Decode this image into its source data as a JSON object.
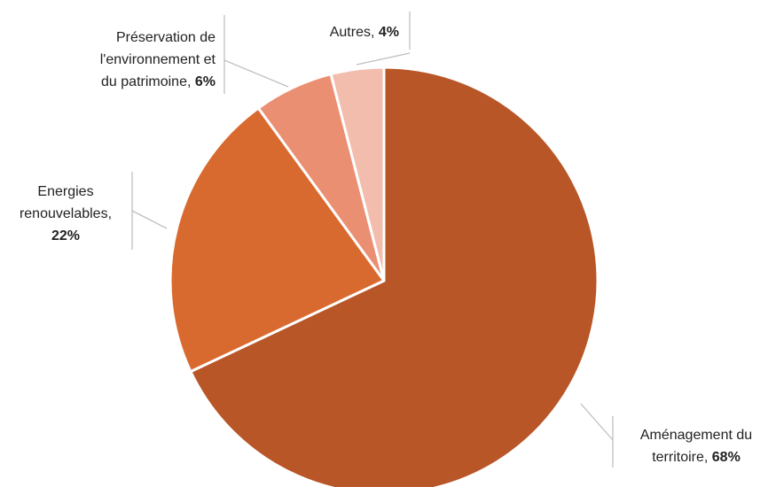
{
  "chart_data": {
    "type": "pie",
    "title": "",
    "legend": "none",
    "slices": [
      {
        "label": "Aménagement du territoire",
        "label_lines": [
          "Aménagement du",
          "territoire,"
        ],
        "value": 68,
        "display": "68%",
        "color": "#B85628"
      },
      {
        "label": "Energies renouvelables",
        "label_lines": [
          "Energies",
          "renouvelables,"
        ],
        "value": 22,
        "display": "22%",
        "color": "#D96A2F"
      },
      {
        "label": "Préservation de l'environnement et du patrimoine",
        "label_lines": [
          "Préservation de",
          "l'environnement et",
          "du patrimoine,"
        ],
        "value": 6,
        "display": "6%",
        "color": "#EB8F73"
      },
      {
        "label": "Autres",
        "label_lines": [
          "Autres,"
        ],
        "value": 4,
        "display": "4%",
        "color": "#F3BDAE"
      }
    ]
  }
}
